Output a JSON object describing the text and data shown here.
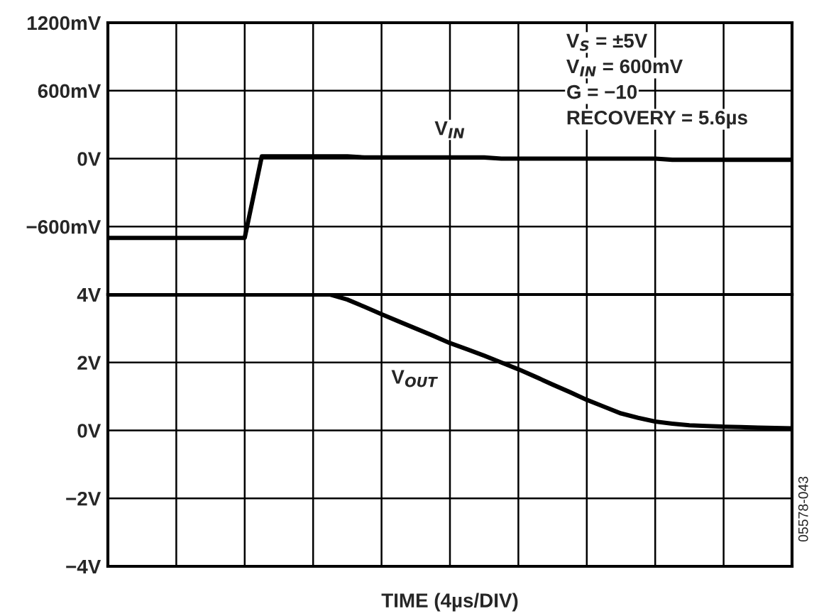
{
  "chart_data": [
    {
      "type": "line",
      "categories": [
        null,
        null,
        null,
        null,
        null,
        null,
        null,
        null,
        null,
        null,
        null,
        null,
        null,
        null,
        null,
        null,
        null,
        null,
        null,
        null,
        null,
        null,
        null,
        null,
        null,
        null,
        null,
        null,
        null,
        null,
        null,
        null,
        null,
        null,
        null,
        null,
        null,
        null,
        null,
        null,
        null
      ],
      "ylim": [
        -1200,
        1200
      ],
      "yticks": [
        {
          "value": -1200,
          "label": null
        },
        {
          "value": -600,
          "label": "−600mV"
        },
        {
          "value": 0,
          "label": "0V"
        },
        {
          "value": 600,
          "label": "600mV"
        },
        {
          "value": 1200,
          "label": "1200mV"
        }
      ],
      "grid": true,
      "tick_labels": "y",
      "series": [
        {
          "name": "V$_{IN}$",
          "color": "#000000",
          "values": [
            -700,
            -700,
            -700,
            -700,
            -700,
            -700,
            -700,
            -700,
            -700,
            20,
            20,
            20,
            20,
            20,
            20,
            10,
            10,
            10,
            10,
            10,
            10,
            10,
            10,
            0,
            0,
            0,
            0,
            0,
            0,
            0,
            0,
            0,
            0,
            -10,
            -10,
            -10,
            -10,
            -10,
            -10,
            -10,
            -10
          ]
        }
      ],
      "annotations": [
        "V$_{S}$ = ±5V",
        "V$_{IN}$ = 600mV",
        "G = −10",
        "RECOVERY = 5.6µs"
      ]
    },
    {
      "type": "line",
      "categories": [
        null,
        null,
        null,
        null,
        null,
        null,
        null,
        null,
        null,
        null,
        null,
        null,
        null,
        null,
        null,
        null,
        null,
        null,
        null,
        null,
        null,
        null,
        null,
        null,
        null,
        null,
        null,
        null,
        null,
        null,
        null,
        null,
        null,
        null,
        null,
        null,
        null,
        null,
        null,
        null,
        null
      ],
      "ylim": [
        -4,
        4
      ],
      "yticks": [
        {
          "value": -4,
          "label": "−4V"
        },
        {
          "value": -2,
          "label": "−2V"
        },
        {
          "value": 0,
          "label": "0V"
        },
        {
          "value": 2,
          "label": "2V"
        },
        {
          "value": 4,
          "label": "4V"
        }
      ],
      "grid": true,
      "tick_labels": "y",
      "xlabel": "TIME (4µs/DIV)",
      "series": [
        {
          "name": "V$_{OUT}$",
          "color": "#000000",
          "values": [
            4.0,
            4.0,
            4.0,
            4.0,
            4.0,
            4.0,
            4.0,
            4.0,
            4.0,
            4.0,
            4.0,
            4.0,
            4.0,
            4.0,
            3.85,
            3.64,
            3.42,
            3.21,
            3.0,
            2.79,
            2.57,
            2.39,
            2.2,
            2.0,
            1.8,
            1.58,
            1.35,
            1.13,
            0.9,
            0.7,
            0.5,
            0.37,
            0.26,
            0.2,
            0.15,
            0.13,
            0.11,
            0.1,
            0.08,
            0.07,
            0.06
          ]
        }
      ],
      "annotations": [
        "05578-043"
      ]
    }
  ]
}
